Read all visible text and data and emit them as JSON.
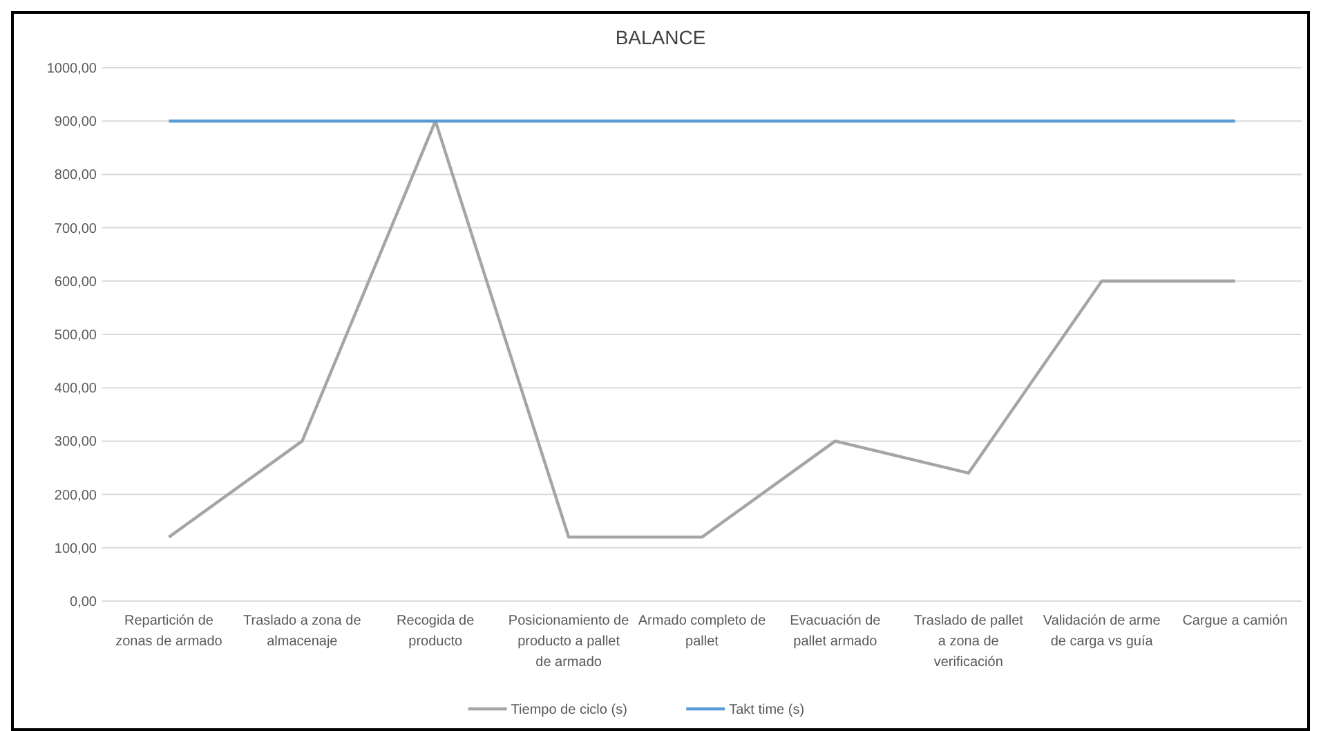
{
  "chart_data": {
    "type": "line",
    "title": "BALANCE",
    "categories": [
      "Repartición de zonas de armado",
      "Traslado a zona de almacenaje",
      "Recogida de producto",
      "Posicionamiento de producto a pallet de armado",
      "Armado completo de pallet",
      "Evacuación de pallet armado",
      "Traslado de pallet a zona de verificación",
      "Validación de arme de carga vs guía",
      "Cargue a camión"
    ],
    "series": [
      {
        "name": "Tiempo de ciclo (s)",
        "color": "#a5a5a5",
        "values": [
          120,
          300,
          900,
          120,
          120,
          300,
          240,
          600,
          600
        ]
      },
      {
        "name": "Takt time (s)",
        "color": "#5b9bd5",
        "values": [
          900,
          900,
          900,
          900,
          900,
          900,
          900,
          900,
          900
        ]
      }
    ],
    "ylim": [
      0,
      1000
    ],
    "yticks": [
      {
        "value": 0,
        "label": "0,00"
      },
      {
        "value": 100,
        "label": "100,00"
      },
      {
        "value": 200,
        "label": "200,00"
      },
      {
        "value": 300,
        "label": "300,00"
      },
      {
        "value": 400,
        "label": "400,00"
      },
      {
        "value": 500,
        "label": "500,00"
      },
      {
        "value": 600,
        "label": "600,00"
      },
      {
        "value": 700,
        "label": "700,00"
      },
      {
        "value": 800,
        "label": "800,00"
      },
      {
        "value": 900,
        "label": "900,00"
      },
      {
        "value": 1000,
        "label": "1000,00"
      }
    ],
    "grid": "y",
    "legend": "bottom",
    "marker": "none",
    "line_style": "solid"
  }
}
